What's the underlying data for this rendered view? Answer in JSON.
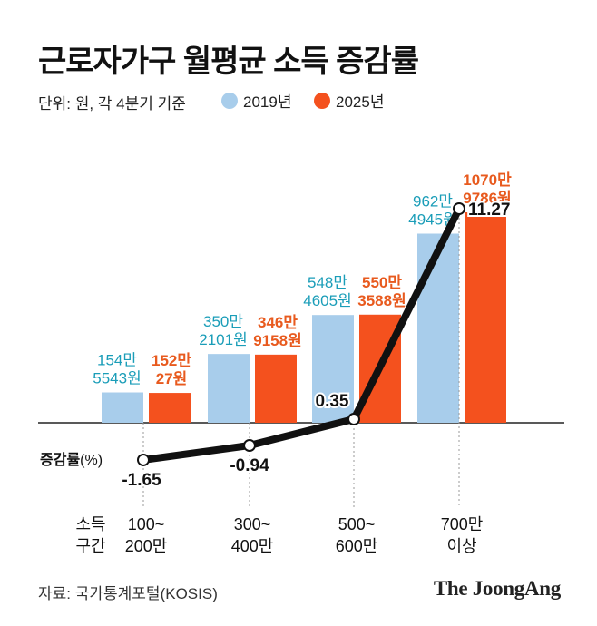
{
  "title": "근로자가구 월평균 소득 증감률",
  "unit_label": "단위: 원, 각 4분기 기준",
  "source": "자료: 국가통계포털(KOSIS)",
  "logo": "The JoongAng",
  "colors": {
    "s2019": "#A8CDEB",
    "s2025": "#F4511E",
    "text2019": "#1A9DB8",
    "text2025": "#E85A1E",
    "line": "#111111"
  },
  "chart_data": {
    "type": "bar",
    "category_axis_label": "소득 구간",
    "categories": [
      [
        "100~",
        "200만"
      ],
      [
        "300~",
        "400만"
      ],
      [
        "500~",
        "600만"
      ],
      [
        "700만",
        "이상"
      ]
    ],
    "series": [
      {
        "name": "2019년",
        "values": [
          1545543,
          3502101,
          5484605,
          9624945
        ],
        "labels": [
          [
            "154만",
            "5543원"
          ],
          [
            "350만",
            "2101원"
          ],
          [
            "548만",
            "4605원"
          ],
          [
            "962만",
            "4945원"
          ]
        ]
      },
      {
        "name": "2025년",
        "values": [
          1520027,
          3469158,
          5503588,
          10709786
        ],
        "labels": [
          [
            "152만",
            "27원"
          ],
          [
            "346만",
            "9158원"
          ],
          [
            "550만",
            "3588원"
          ],
          [
            "1070만",
            "9786원"
          ]
        ]
      }
    ],
    "rate_series": {
      "name": "증감률(%)",
      "values": [
        -1.65,
        -0.94,
        0.35,
        11.27
      ],
      "labels": [
        "-1.65",
        "-0.94",
        "0.35",
        "11.27"
      ]
    }
  }
}
